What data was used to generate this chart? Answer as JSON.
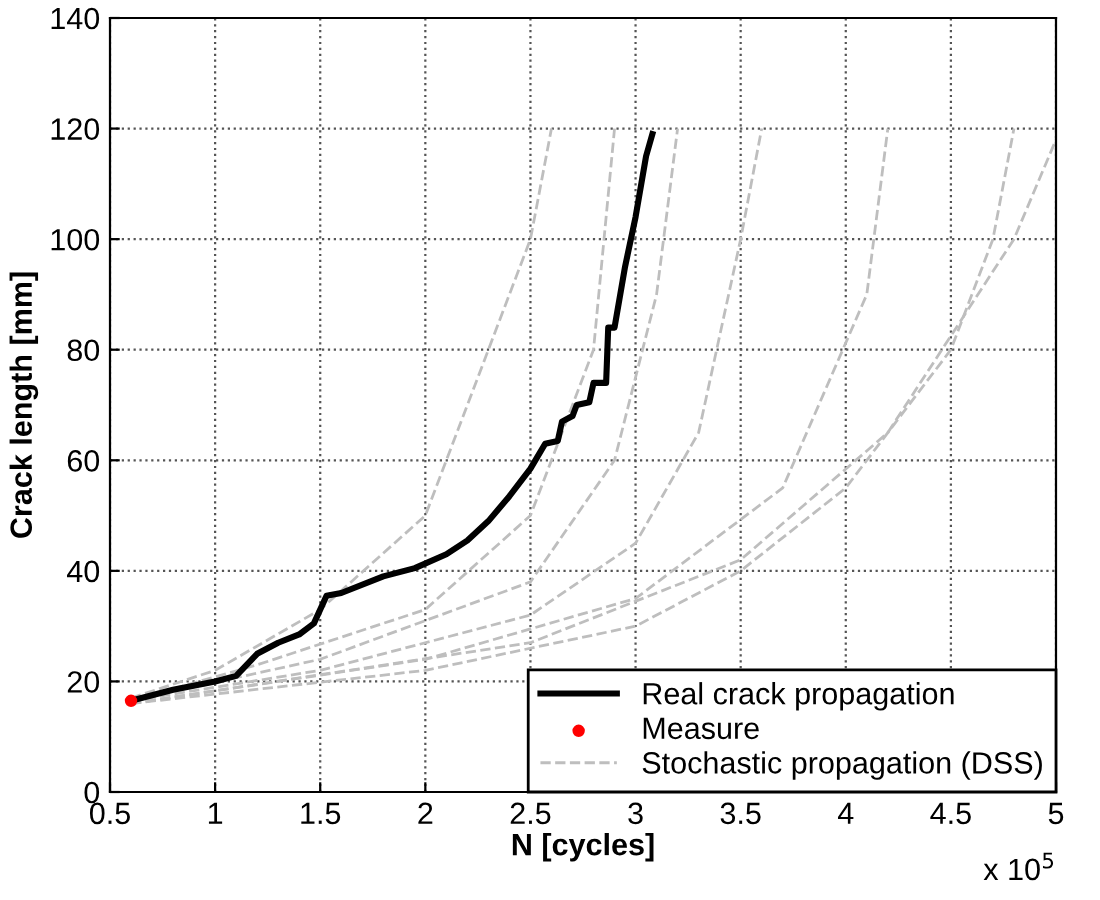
{
  "chart_data": {
    "type": "line",
    "xlabel": "N [cycles]",
    "ylabel": "Crack length [mm]",
    "xlim": [
      0.5,
      5
    ],
    "xticks": [
      0.5,
      1,
      1.5,
      2,
      2.5,
      3,
      3.5,
      4,
      4.5,
      5
    ],
    "ylim": [
      0,
      140
    ],
    "yticks": [
      0,
      20,
      40,
      60,
      80,
      100,
      120,
      140
    ],
    "grid": true,
    "legend": "bottom right",
    "annotations": [
      "x 10$^{5}$"
    ],
    "series": [
      {
        "name": "Real crack propagation",
        "color": "#000000",
        "line_style": "solid",
        "marker": "none",
        "x": [
          0.6,
          0.8,
          1.0,
          1.1,
          1.2,
          1.3,
          1.4,
          1.47,
          1.53,
          1.6,
          1.8,
          1.95,
          2.1,
          2.2,
          2.3,
          2.4,
          2.5,
          2.57,
          2.63,
          2.65,
          2.7,
          2.72,
          2.78,
          2.8,
          2.86,
          2.87,
          2.9,
          2.95,
          3.0,
          3.05,
          3.08
        ],
        "values": [
          16.5,
          18.5,
          20,
          21,
          25,
          27,
          28.5,
          30.5,
          35.5,
          36,
          39,
          40.5,
          43,
          45.5,
          49,
          53.5,
          58.5,
          63,
          63.5,
          67,
          68,
          70,
          70.5,
          74,
          74,
          84,
          84,
          95,
          104,
          115,
          119
        ]
      },
      {
        "name": "Measure",
        "type": "scatter",
        "color": "#ff0000",
        "marker": "circle",
        "x": [
          0.6
        ],
        "values": [
          16.5
        ]
      },
      {
        "name": "Stochastic propagation (DSS)",
        "color": "#bebebe",
        "line_style": "dashed",
        "marker": "none",
        "x": [
          0.6,
          2.0,
          3.0,
          3.5,
          4.0,
          4.5,
          4.7,
          4.8
        ],
        "values": [
          16,
          22,
          30,
          40,
          55,
          80,
          100,
          120
        ]
      },
      {
        "color": "#bebebe",
        "line_style": "dashed",
        "marker": "none",
        "x": [
          0.6,
          1.0,
          1.5,
          2.0,
          2.3,
          2.5,
          2.6
        ],
        "values": [
          17,
          22,
          33,
          50,
          80,
          100,
          120
        ]
      },
      {
        "color": "#bebebe",
        "line_style": "dashed",
        "marker": "none",
        "x": [
          0.6,
          1.5,
          2.5,
          3.0,
          3.3,
          3.5,
          3.6
        ],
        "values": [
          16.5,
          22,
          32,
          45,
          65,
          100,
          120
        ]
      },
      {
        "color": "#bebebe",
        "line_style": "dashed",
        "marker": "none",
        "x": [
          0.6,
          1.5,
          2.5,
          2.9,
          3.1,
          3.2
        ],
        "values": [
          16.5,
          24,
          38,
          60,
          90,
          120
        ]
      },
      {
        "color": "#bebebe",
        "line_style": "dashed",
        "marker": "none",
        "x": [
          0.6,
          2.0,
          3.0,
          3.7,
          4.1,
          4.2
        ],
        "values": [
          16,
          24,
          35,
          55,
          90,
          120
        ]
      },
      {
        "color": "#bebebe",
        "line_style": "dashed",
        "marker": "none",
        "x": [
          0.6,
          1.2,
          2.0,
          2.5,
          2.8,
          2.9
        ],
        "values": [
          16.5,
          23,
          33,
          50,
          80,
          120
        ]
      },
      {
        "color": "#bebebe",
        "line_style": "dashed",
        "marker": "none",
        "x": [
          0.6,
          2.5,
          3.5,
          4.2,
          4.8,
          5.0
        ],
        "values": [
          16,
          27,
          42,
          65,
          100,
          118
        ]
      }
    ]
  }
}
